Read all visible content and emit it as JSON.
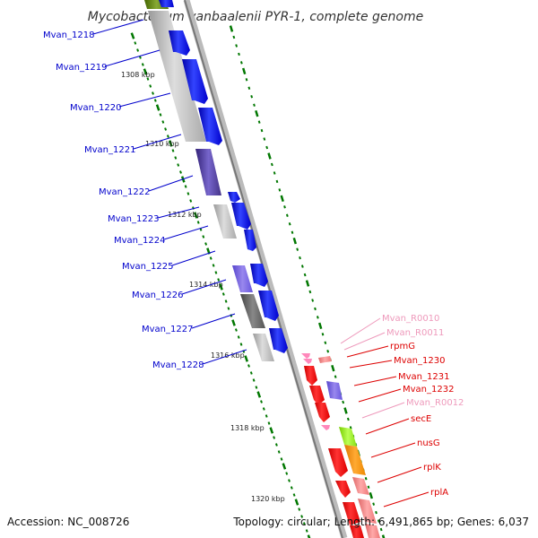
{
  "title": "Mycobacterium vanbaalenii PYR-1, complete genome",
  "footer": {
    "accession": "Accession: NC_008726",
    "summary": "Topology: circular; Length: 6,491,865 bp; Genes: 6,037"
  },
  "colors": {
    "forward_gene": "#0000ee",
    "reverse_gene": "#ff0000",
    "rna_gene": "#ff88bb",
    "left_label": "#0000cc",
    "right_label": "#dd0000",
    "rna_label": "#ee99bb",
    "backbone": "#888888",
    "tick": "#007700"
  },
  "scale_labels": [
    "1308 kbp",
    "1310 kbp",
    "1312 kbp",
    "1314 kbp",
    "1316 kbp",
    "1318 kbp",
    "1320 kbp"
  ],
  "left_genes": [
    "Mvan_1218",
    "Mvan_1219",
    "Mvan_1220",
    "Mvan_1221",
    "Mvan_1222",
    "Mvan_1223",
    "Mvan_1224",
    "Mvan_1225",
    "Mvan_1226",
    "Mvan_1227",
    "Mvan_1228"
  ],
  "right_genes": [
    {
      "name": "Mvan_R0010",
      "kind": "rna"
    },
    {
      "name": "Mvan_R0011",
      "kind": "rna"
    },
    {
      "name": "rpmG",
      "kind": "protein"
    },
    {
      "name": "Mvan_1230",
      "kind": "protein"
    },
    {
      "name": "Mvan_1231",
      "kind": "protein"
    },
    {
      "name": "Mvan_1232",
      "kind": "protein"
    },
    {
      "name": "Mvan_R0012",
      "kind": "rna"
    },
    {
      "name": "secE",
      "kind": "protein"
    },
    {
      "name": "nusG",
      "kind": "protein"
    },
    {
      "name": "rplK",
      "kind": "protein"
    },
    {
      "name": "rplA",
      "kind": "protein"
    }
  ]
}
